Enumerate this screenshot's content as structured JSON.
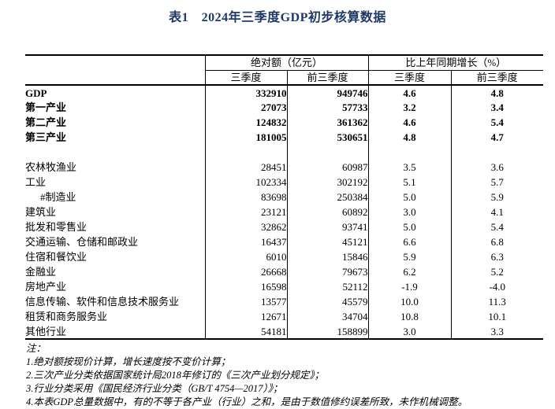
{
  "title": "表1　2024年三季度GDP初步核算数据",
  "table": {
    "col_groups": [
      {
        "label": "绝对额（亿元）"
      },
      {
        "label": "比上年同期增长（%）"
      }
    ],
    "sub_headers": [
      "三季度",
      "前三季度",
      "三季度",
      "前三季度"
    ],
    "rows": [
      {
        "label": "GDP",
        "bold": true,
        "abs_q3": "332910",
        "abs_cum": "949746",
        "growth_q3": "4.6",
        "growth_cum": "4.8"
      },
      {
        "label": "第一产业",
        "bold": true,
        "abs_q3": "27073",
        "abs_cum": "57733",
        "growth_q3": "3.2",
        "growth_cum": "3.4"
      },
      {
        "label": "第二产业",
        "bold": true,
        "abs_q3": "124832",
        "abs_cum": "361362",
        "growth_q3": "4.6",
        "growth_cum": "5.4"
      },
      {
        "label": "第三产业",
        "bold": true,
        "abs_q3": "181005",
        "abs_cum": "530651",
        "growth_q3": "4.8",
        "growth_cum": "4.7"
      },
      {
        "spacer": true
      },
      {
        "label": "农林牧渔业",
        "abs_q3": "28451",
        "abs_cum": "60987",
        "growth_q3": "3.5",
        "growth_cum": "3.6"
      },
      {
        "label": "工业",
        "abs_q3": "102334",
        "abs_cum": "302192",
        "growth_q3": "5.1",
        "growth_cum": "5.7"
      },
      {
        "label": "#制造业",
        "indent": true,
        "abs_q3": "83698",
        "abs_cum": "250384",
        "growth_q3": "5.0",
        "growth_cum": "5.9"
      },
      {
        "label": "建筑业",
        "abs_q3": "23121",
        "abs_cum": "60892",
        "growth_q3": "3.0",
        "growth_cum": "4.1"
      },
      {
        "label": "批发和零售业",
        "abs_q3": "32862",
        "abs_cum": "93741",
        "growth_q3": "5.0",
        "growth_cum": "5.4"
      },
      {
        "label": "交通运输、仓储和邮政业",
        "abs_q3": "16437",
        "abs_cum": "45121",
        "growth_q3": "6.6",
        "growth_cum": "6.8"
      },
      {
        "label": "住宿和餐饮业",
        "abs_q3": "6010",
        "abs_cum": "15846",
        "growth_q3": "5.9",
        "growth_cum": "6.3"
      },
      {
        "label": "金融业",
        "abs_q3": "26668",
        "abs_cum": "79673",
        "growth_q3": "6.2",
        "growth_cum": "5.2"
      },
      {
        "label": "房地产业",
        "abs_q3": "16598",
        "abs_cum": "52112",
        "growth_q3": "-1.9",
        "growth_cum": "-4.0"
      },
      {
        "label": "信息传输、软件和信息技术服务业",
        "abs_q3": "13577",
        "abs_cum": "45579",
        "growth_q3": "10.0",
        "growth_cum": "11.3"
      },
      {
        "label": "租赁和商务服务业",
        "abs_q3": "12671",
        "abs_cum": "34704",
        "growth_q3": "10.8",
        "growth_cum": "10.1"
      },
      {
        "label": "其他行业",
        "abs_q3": "54181",
        "abs_cum": "158899",
        "growth_q3": "3.0",
        "growth_cum": "3.3"
      }
    ],
    "notes": [
      "注：",
      "1.绝对额按现价计算，增长速度按不变价计算；",
      "2.三次产业分类依据国家统计局2018年修订的《三次产业划分规定》；",
      "3.行业分类采用《国民经济行业分类（GB/T 4754—2017）》；",
      "4.本表GDP总量数据中，有的不等于各产业（行业）之和，是由于数值修约误差所致，未作机械调整。"
    ],
    "colors": {
      "title": "#1f3864",
      "text": "#000000",
      "border": "#000000"
    }
  }
}
